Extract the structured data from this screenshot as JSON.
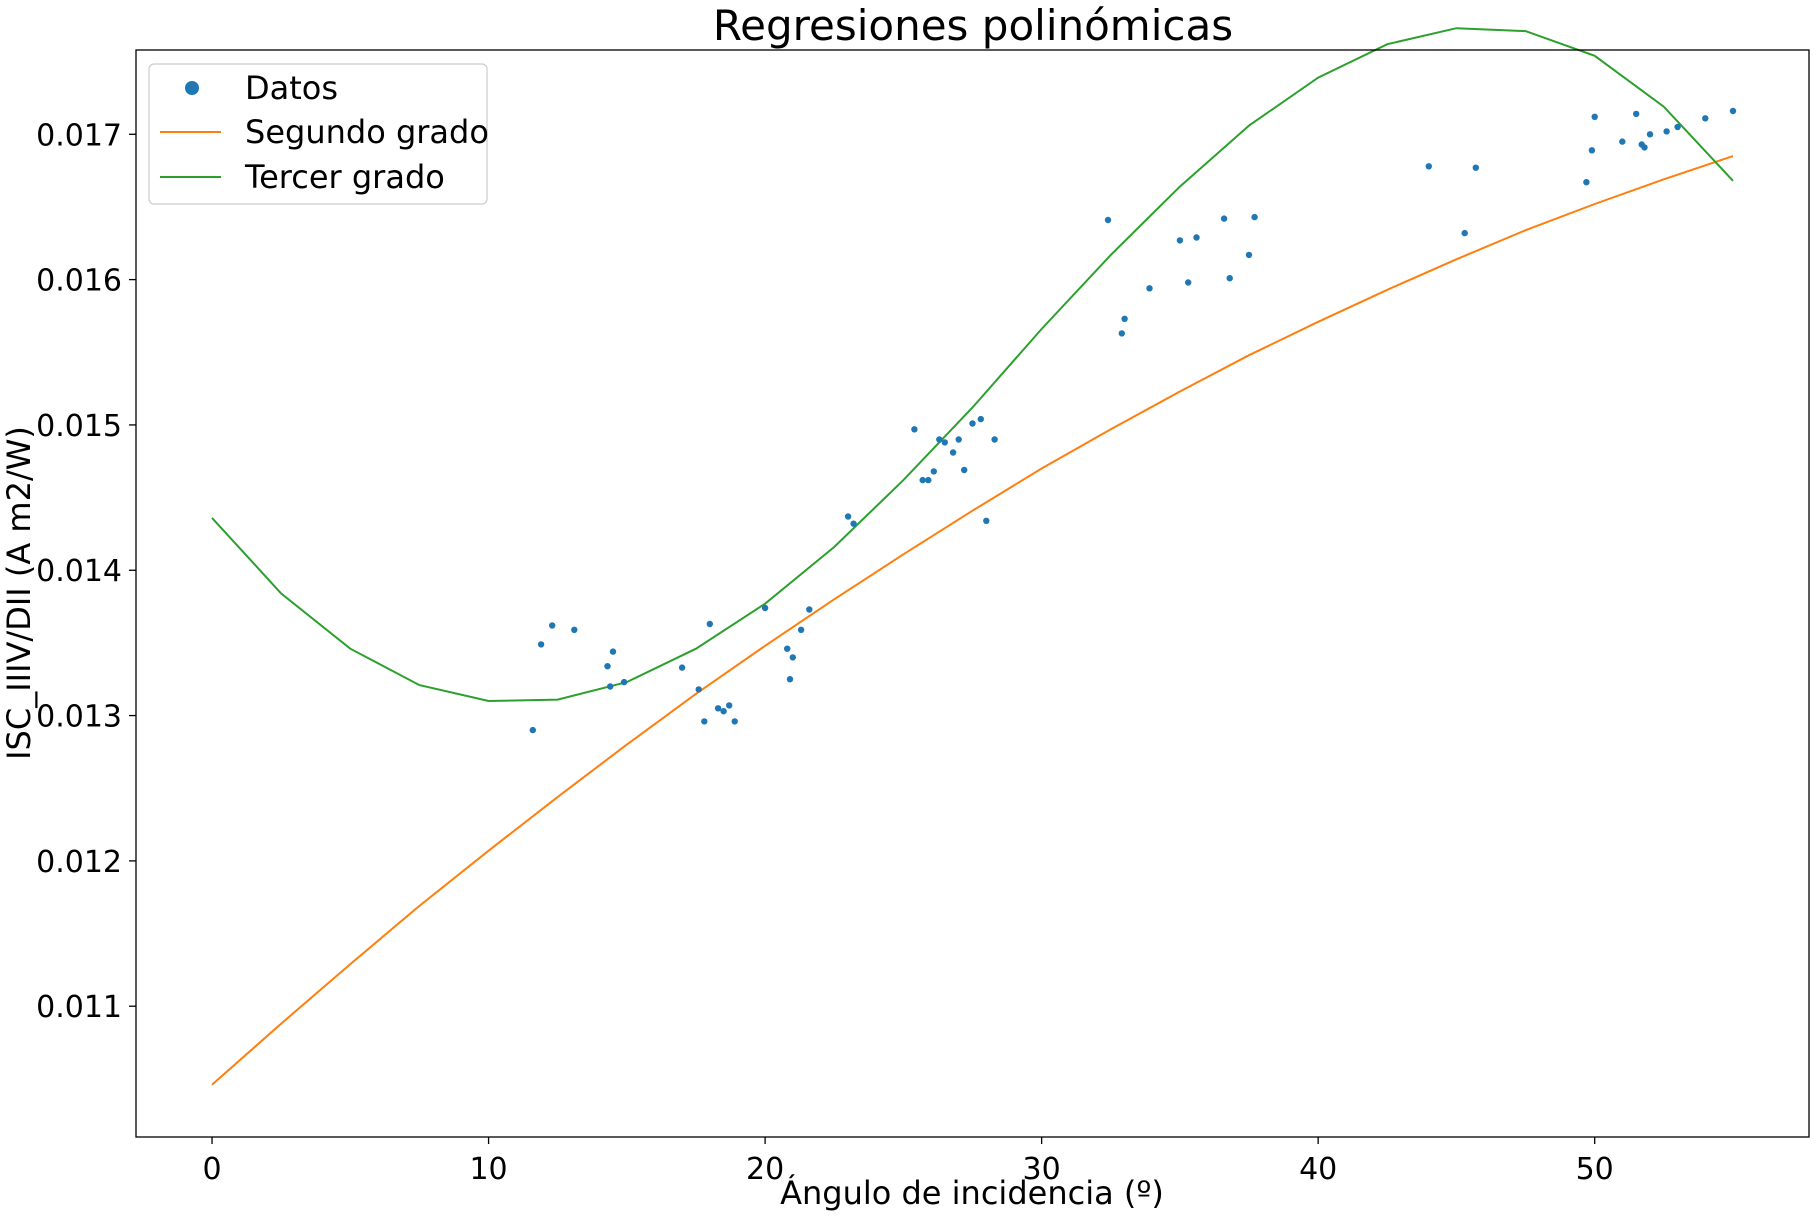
{
  "chart_data": {
    "type": "scatter",
    "title": "Regresiones polinómicas",
    "xlabel": "Ángulo de incidencia (º)",
    "ylabel": "ISC_IIIV/DII (A m2/W)",
    "xlim": [
      -2.75,
      57.75
    ],
    "ylim": [
      0.0101,
      0.01758
    ],
    "xticks": [
      0,
      10,
      20,
      30,
      40,
      50
    ],
    "yticks": [
      0.011,
      0.012,
      0.013,
      0.014,
      0.015,
      0.016,
      0.017
    ],
    "ytick_labels": [
      "0.011",
      "0.012",
      "0.013",
      "0.014",
      "0.015",
      "0.016",
      "0.017"
    ],
    "grid": false,
    "legend_position": "top-left",
    "series": [
      {
        "name": "Datos",
        "kind": "scatter",
        "color": "#1f77b4",
        "x": [
          11.6,
          11.9,
          12.3,
          13.1,
          14.3,
          14.4,
          14.5,
          14.9,
          17.0,
          17.6,
          17.8,
          18.0,
          18.3,
          18.5,
          18.7,
          18.9,
          20.0,
          20.8,
          20.9,
          21.0,
          21.3,
          21.6,
          23.0,
          23.2,
          25.4,
          25.7,
          25.9,
          26.1,
          26.3,
          26.5,
          26.8,
          27.0,
          27.2,
          27.5,
          27.8,
          28.0,
          28.3,
          32.4,
          32.9,
          33.0,
          33.9,
          35.0,
          35.3,
          35.6,
          36.6,
          36.8,
          37.5,
          37.7,
          44.0,
          45.3,
          45.7,
          49.7,
          49.9,
          50.0,
          51.0,
          51.5,
          51.7,
          51.8,
          52.0,
          52.6,
          53.0,
          54.0,
          55.0
        ],
        "y": [
          0.0129,
          0.01349,
          0.01362,
          0.01359,
          0.01334,
          0.0132,
          0.01344,
          0.01323,
          0.01333,
          0.01318,
          0.01296,
          0.01363,
          0.01305,
          0.01303,
          0.01307,
          0.01296,
          0.01374,
          0.01346,
          0.01325,
          0.0134,
          0.01359,
          0.01373,
          0.01437,
          0.01432,
          0.01497,
          0.01462,
          0.01462,
          0.01468,
          0.0149,
          0.01488,
          0.01481,
          0.0149,
          0.01469,
          0.01501,
          0.01504,
          0.01434,
          0.0149,
          0.01641,
          0.01563,
          0.01573,
          0.01594,
          0.01627,
          0.01598,
          0.01629,
          0.01642,
          0.01601,
          0.01617,
          0.01643,
          0.01678,
          0.01632,
          0.01677,
          0.01667,
          0.01689,
          0.01712,
          0.01695,
          0.01714,
          0.01693,
          0.01691,
          0.017,
          0.01702,
          0.01705,
          0.01711,
          0.01716
        ]
      },
      {
        "name": "Segundo grado",
        "kind": "line",
        "color": "#ff7f0e",
        "x": [
          0,
          2.5,
          5,
          7.5,
          10,
          12.5,
          15,
          17.5,
          20,
          22.5,
          25,
          27.5,
          30,
          32.5,
          35,
          37.5,
          40,
          42.5,
          45,
          47.5,
          50,
          52.5,
          55
        ],
        "y": [
          0.01046,
          0.01088,
          0.01129,
          0.01169,
          0.01207,
          0.01244,
          0.0128,
          0.01315,
          0.01348,
          0.0138,
          0.01411,
          0.01441,
          0.0147,
          0.01497,
          0.01523,
          0.01548,
          0.01571,
          0.01593,
          0.01614,
          0.01634,
          0.01652,
          0.01669,
          0.01685
        ]
      },
      {
        "name": "Tercer grado",
        "kind": "line",
        "color": "#2ca02c",
        "x": [
          0,
          2.5,
          5,
          7.5,
          10,
          12.5,
          15,
          17.5,
          20,
          22.5,
          25,
          27.5,
          30,
          32.5,
          35,
          37.5,
          40,
          42.5,
          45,
          47.5,
          50,
          52.5,
          55
        ],
        "y": [
          0.01436,
          0.01384,
          0.01346,
          0.01321,
          0.0131,
          0.01311,
          0.01323,
          0.01346,
          0.01377,
          0.01416,
          0.01462,
          0.01512,
          0.01566,
          0.01617,
          0.01664,
          0.01706,
          0.01739,
          0.01762,
          0.01773,
          0.01771,
          0.01754,
          0.01719,
          0.01668
        ]
      }
    ]
  }
}
